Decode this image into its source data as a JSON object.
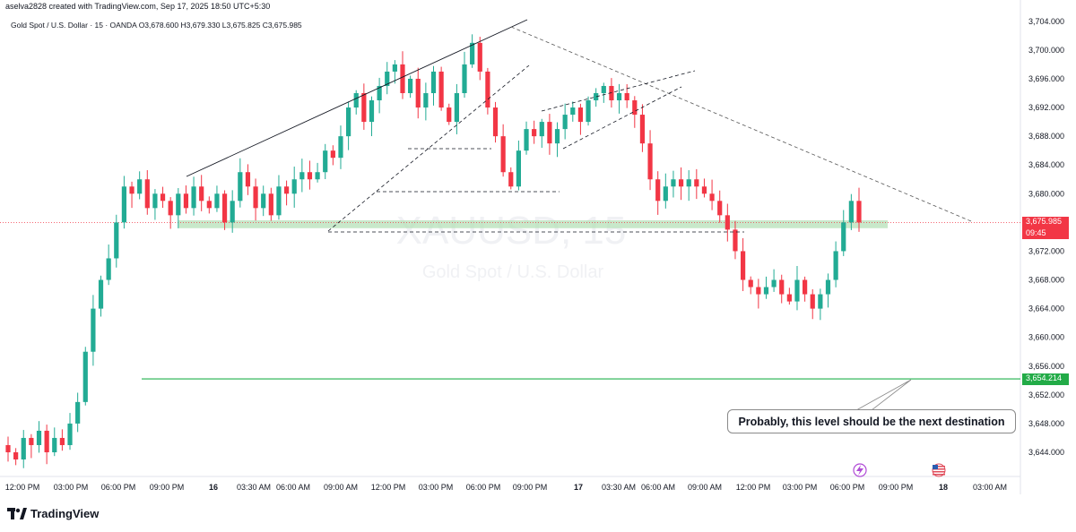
{
  "header": {
    "created_by": "aselva2828 created with TradingView.com, Sep 17, 2025 18:50 UTC+5:30"
  },
  "symbol": {
    "name": "Gold Spot / U.S. Dollar · 15 · OANDA",
    "ohlc": "O3,678.600  H3,679.330  L3,675.825  C3,675.985"
  },
  "watermark": {
    "ticker": "XAUUSD, 15",
    "description": "Gold Spot / U.S. Dollar"
  },
  "annotation": {
    "callout_text": "Probably, this level should be the next destination"
  },
  "price_tags": {
    "last_price": "3,675.985",
    "countdown": "09:45",
    "target_level": "3,654.214"
  },
  "brand": {
    "name": "TradingView"
  },
  "colors": {
    "up": "#22ab94",
    "down": "#f23645",
    "zone": "#b6e0b8",
    "target_line": "#22b14c",
    "tag_red": "#f23645",
    "tag_green": "#22ab47"
  },
  "icons": [
    "tradingview-logo-icon",
    "lightning-event-icon",
    "us-flag-event-icon"
  ],
  "chart_data": {
    "type": "candlestick",
    "interval": "15",
    "ylim": [
      3640,
      3706
    ],
    "y_ticks": [
      3644,
      3648,
      3652,
      3656,
      3660,
      3664,
      3668,
      3672,
      3676,
      3680,
      3684,
      3688,
      3692,
      3696,
      3700,
      3704
    ],
    "y_tick_labels": [
      "3,644.000",
      "3,648.000",
      "3,652.000",
      "3,656.000",
      "3,660.000",
      "3,664.000",
      "3,668.000",
      "3,672.000",
      "3,676.000",
      "3,680.000",
      "3,684.000",
      "3,688.000",
      "3,692.000",
      "3,696.000",
      "3,700.000",
      "3,704.000"
    ],
    "x_tick_labels": [
      "12:00 PM",
      "03:00 PM",
      "06:00 PM",
      "09:00 PM",
      "16",
      "03:30 AM",
      "06:00 AM",
      "09:00 AM",
      "12:00 PM",
      "03:00 PM",
      "06:00 PM",
      "09:00 PM",
      "17",
      "03:30 AM",
      "06:00 AM",
      "09:00 AM",
      "12:00 PM",
      "03:00 PM",
      "06:00 PM",
      "09:00 PM",
      "18",
      "03:00 AM"
    ],
    "close_path": [
      3644,
      3643,
      3646,
      3645,
      3647,
      3644,
      3646,
      3645,
      3648,
      3651,
      3658,
      3664,
      3668,
      3671,
      3676,
      3681,
      3680,
      3682,
      3678,
      3680,
      3679,
      3677,
      3680,
      3678,
      3681,
      3679,
      3678,
      3680,
      3676,
      3679,
      3683,
      3681,
      3678,
      3680,
      3677,
      3681,
      3680,
      3682,
      3683,
      3682,
      3683,
      3686,
      3685,
      3688,
      3692,
      3694,
      3690,
      3693,
      3695,
      3697,
      3698,
      3694,
      3696,
      3692,
      3694,
      3697,
      3692,
      3690,
      3694,
      3698,
      3701,
      3697,
      3692,
      3688,
      3683,
      3681,
      3686,
      3689,
      3688,
      3690,
      3687,
      3689,
      3691,
      3692,
      3690,
      3693,
      3694,
      3695,
      3693,
      3694,
      3693,
      3691,
      3687,
      3682,
      3679,
      3681,
      3682,
      3681,
      3682,
      3681,
      3680,
      3679,
      3677,
      3675,
      3672,
      3668,
      3667,
      3666,
      3667,
      3668,
      3666,
      3665,
      3668,
      3666,
      3664,
      3666,
      3668,
      3672,
      3676,
      3679,
      3676
    ],
    "levels": {
      "target": 3654.214,
      "last": 3675.985,
      "support_zone": [
        3675.2,
        3676.3
      ]
    }
  }
}
